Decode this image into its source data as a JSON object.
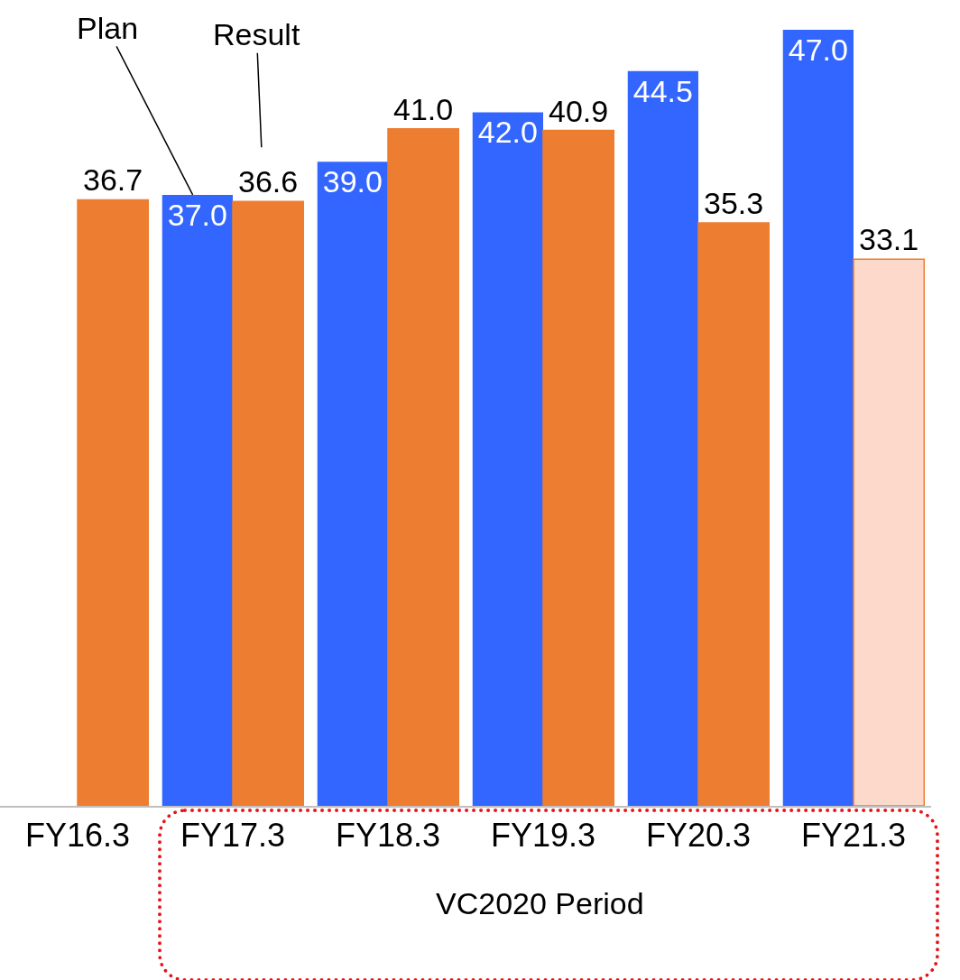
{
  "chart_data": {
    "type": "bar",
    "categories": [
      "FY16.3",
      "FY17.3",
      "FY18.3",
      "FY19.3",
      "FY20.3",
      "FY21.3"
    ],
    "series": [
      {
        "name": "Plan",
        "color": "#3366ff",
        "values": [
          null,
          37.0,
          39.0,
          42.0,
          44.5,
          47.0
        ],
        "value_labels": [
          null,
          "37.0",
          "39.0",
          "42.0",
          "44.5",
          "47.0"
        ]
      },
      {
        "name": "Result",
        "color": "#ed7d31",
        "colors": [
          "#ed7d31",
          "#ed7d31",
          "#ed7d31",
          "#ed7d31",
          "#ed7d31",
          "#fcd9ca"
        ],
        "values": [
          36.7,
          36.6,
          41.0,
          40.9,
          35.3,
          33.1
        ],
        "value_labels": [
          "36.7",
          "36.6",
          "41.0",
          "40.9",
          "35.3",
          "33.1"
        ]
      }
    ],
    "ylim": [
      0,
      48.8
    ],
    "grid": false,
    "legend": false,
    "tick_labels": "x",
    "annotations": [
      "VC2020 Period"
    ]
  }
}
